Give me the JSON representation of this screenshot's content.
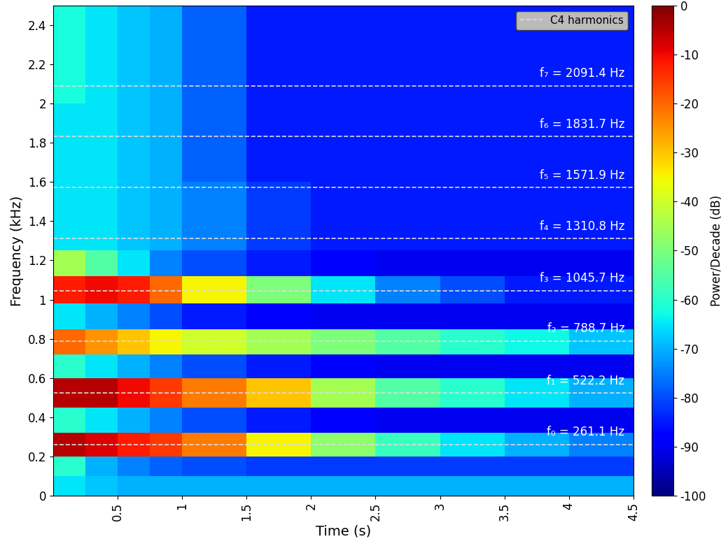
{
  "chart_data": {
    "type": "heatmap",
    "x_label": "Time (s)",
    "y_label": "Frequency (kHz)",
    "xlim": [
      0,
      4.5
    ],
    "xticks": [
      0.5,
      1,
      1.5,
      2,
      2.5,
      3,
      3.5,
      4,
      4.5
    ],
    "ylim": [
      0,
      2.5
    ],
    "yticks": [
      0,
      0.2,
      0.4,
      0.6,
      0.8,
      1,
      1.2,
      1.4,
      1.6,
      1.8,
      2,
      2.2,
      2.4
    ],
    "x_edges": [
      0,
      0.25,
      0.5,
      0.75,
      1.0,
      1.5,
      2.0,
      2.5,
      3.0,
      3.5,
      4.0,
      4.5
    ],
    "y_edges": [
      0,
      0.1,
      0.2,
      0.32,
      0.45,
      0.6,
      0.72,
      0.85,
      0.98,
      1.12,
      1.25,
      1.6,
      2.0,
      2.5
    ],
    "cells": [
      [
        -65,
        -68,
        -70,
        -70,
        -70,
        -70,
        -70,
        -70,
        -70,
        -70,
        -70
      ],
      [
        -60,
        -70,
        -75,
        -78,
        -80,
        -82,
        -82,
        -82,
        -82,
        -82,
        -82
      ],
      [
        -5,
        -8,
        -12,
        -15,
        -22,
        -35,
        -48,
        -58,
        -65,
        -70,
        -75
      ],
      [
        -60,
        -65,
        -70,
        -75,
        -80,
        -85,
        -88,
        -90,
        -90,
        -90,
        -90
      ],
      [
        -5,
        -5,
        -10,
        -15,
        -22,
        -30,
        -45,
        -55,
        -60,
        -65,
        -70
      ],
      [
        -60,
        -65,
        -70,
        -75,
        -80,
        -85,
        -88,
        -90,
        -90,
        -90,
        -90
      ],
      [
        -20,
        -25,
        -30,
        -35,
        -40,
        -45,
        -50,
        -55,
        -60,
        -63,
        -68
      ],
      [
        -65,
        -70,
        -75,
        -80,
        -85,
        -88,
        -90,
        -90,
        -90,
        -90,
        -90
      ],
      [
        -12,
        -10,
        -12,
        -20,
        -35,
        -50,
        -65,
        -75,
        -80,
        -85,
        -85
      ],
      [
        -45,
        -55,
        -65,
        -75,
        -80,
        -85,
        -88,
        -90,
        -90,
        -90,
        -90
      ],
      [
        -65,
        -65,
        -68,
        -70,
        -75,
        -82,
        -85,
        -85,
        -85,
        -85,
        -85
      ],
      [
        -65,
        -65,
        -68,
        -70,
        -78,
        -85,
        -85,
        -85,
        -85,
        -85,
        -85
      ],
      [
        -62,
        -65,
        -68,
        -70,
        -78,
        -85,
        -85,
        -85,
        -85,
        -85,
        -85
      ]
    ],
    "colorbar": {
      "label": "Power/Decade (dB)",
      "lim": [
        -100,
        0
      ],
      "ticks": [
        0,
        -10,
        -20,
        -30,
        -40,
        -50,
        -60,
        -70,
        -80,
        -90,
        -100
      ]
    },
    "harmonics": {
      "name": "C4 harmonics",
      "line_style": "dashed",
      "color": "#dddddd",
      "values": [
        0.2611,
        0.5222,
        0.7887,
        1.0457,
        1.3108,
        1.5719,
        1.8317,
        2.0914
      ],
      "labels": [
        "f₀ = 261.1 Hz",
        "f₁ = 522.2 Hz",
        "f₂ = 788.7 Hz",
        "f₃ = 1045.7 Hz",
        "f₄ = 1310.8 Hz",
        "f₅ = 1571.9 Hz",
        "f₆ = 1831.7 Hz",
        "f₇ = 2091.4 Hz"
      ]
    },
    "legend": "upper right"
  }
}
